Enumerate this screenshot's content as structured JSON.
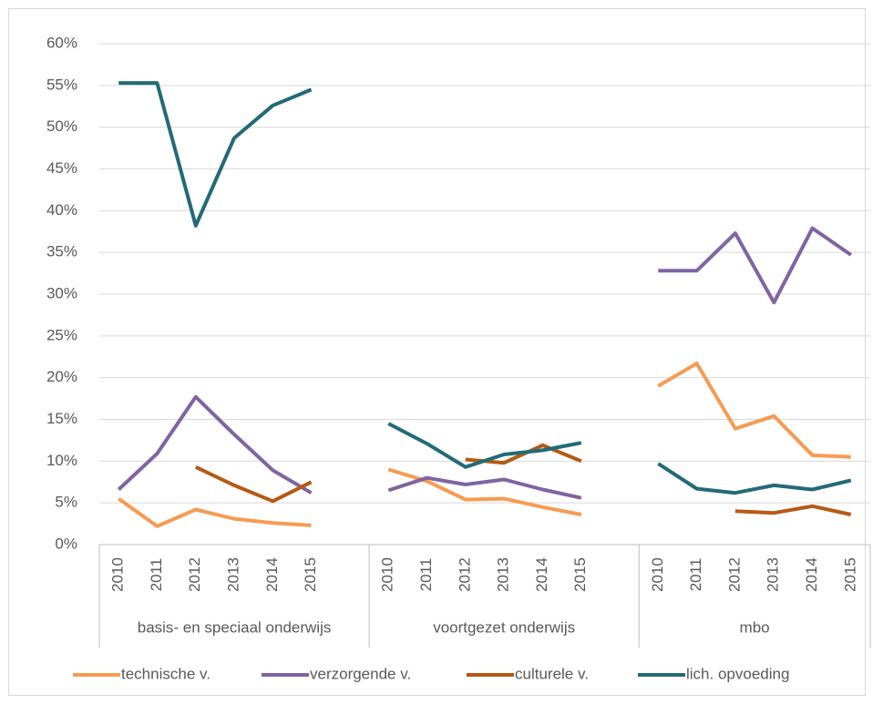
{
  "chart_data": {
    "type": "line",
    "categories": [
      "2010",
      "2011",
      "2012",
      "2013",
      "2014",
      "2015",
      null,
      "2010",
      "2011",
      "2012",
      "2013",
      "2014",
      "2015",
      null,
      "2010",
      "2011",
      "2012",
      "2013",
      "2014",
      "2015"
    ],
    "groups": [
      "basis- en speciaal onderwijs",
      "voortgezet onderwijs",
      "mbo"
    ],
    "series": [
      {
        "name": "technische v.",
        "color": "#f79b52",
        "values": [
          5.5,
          2.2,
          4.2,
          3.1,
          2.6,
          2.3,
          null,
          9.0,
          7.6,
          5.4,
          5.5,
          4.5,
          3.6,
          null,
          19.0,
          21.7,
          13.9,
          15.4,
          10.7,
          10.5
        ]
      },
      {
        "name": "verzorgende v.",
        "color": "#8064a2",
        "values": [
          6.6,
          10.9,
          17.7,
          13.2,
          8.9,
          6.2,
          null,
          6.5,
          8.0,
          7.2,
          7.8,
          6.6,
          5.6,
          null,
          32.8,
          32.8,
          37.3,
          29.0,
          37.9,
          34.7
        ]
      },
      {
        "name": "culturele v.",
        "color": "#b65a14",
        "values": [
          null,
          null,
          9.3,
          7.1,
          5.2,
          7.5,
          null,
          null,
          null,
          10.2,
          9.8,
          11.9,
          10.0,
          null,
          null,
          null,
          4.0,
          3.8,
          4.6,
          3.6
        ]
      },
      {
        "name": "lich. opvoeding",
        "color": "#236a77",
        "values": [
          55.3,
          55.3,
          38.2,
          48.7,
          52.6,
          54.5,
          null,
          14.5,
          12.1,
          9.3,
          10.8,
          11.3,
          12.2,
          null,
          9.7,
          6.7,
          6.2,
          7.1,
          6.6,
          7.7
        ]
      }
    ],
    "ylim": [
      0,
      60
    ],
    "yticks": [
      {
        "value": 0,
        "label": "0%"
      },
      {
        "value": 5,
        "label": "5%"
      },
      {
        "value": 10,
        "label": "10%"
      },
      {
        "value": 15,
        "label": "15%"
      },
      {
        "value": 20,
        "label": "20%"
      },
      {
        "value": 25,
        "label": "25%"
      },
      {
        "value": 30,
        "label": "30%"
      },
      {
        "value": 35,
        "label": "35%"
      },
      {
        "value": 40,
        "label": "40%"
      },
      {
        "value": 45,
        "label": "45%"
      },
      {
        "value": 50,
        "label": "50%"
      },
      {
        "value": 55,
        "label": "55%"
      },
      {
        "value": 60,
        "label": "60%"
      }
    ],
    "grid": true,
    "legend": "bottom"
  }
}
